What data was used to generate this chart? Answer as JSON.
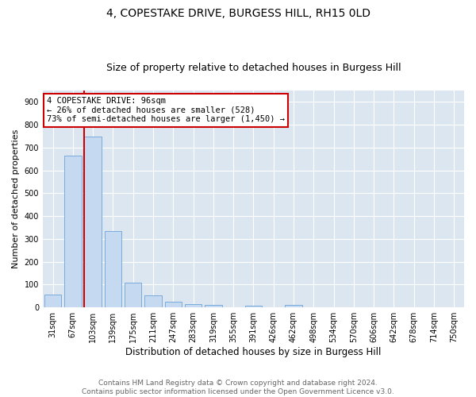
{
  "title": "4, COPESTAKE DRIVE, BURGESS HILL, RH15 0LD",
  "subtitle": "Size of property relative to detached houses in Burgess Hill",
  "xlabel": "Distribution of detached houses by size in Burgess Hill",
  "ylabel": "Number of detached properties",
  "bar_labels": [
    "31sqm",
    "67sqm",
    "103sqm",
    "139sqm",
    "175sqm",
    "211sqm",
    "247sqm",
    "283sqm",
    "319sqm",
    "355sqm",
    "391sqm",
    "426sqm",
    "462sqm",
    "498sqm",
    "534sqm",
    "570sqm",
    "606sqm",
    "642sqm",
    "678sqm",
    "714sqm",
    "750sqm"
  ],
  "bar_values": [
    55,
    665,
    750,
    335,
    110,
    52,
    25,
    15,
    10,
    0,
    8,
    0,
    10,
    0,
    0,
    0,
    0,
    0,
    0,
    0,
    0
  ],
  "bar_color": "#c5d9f0",
  "bar_edge_color": "#7aabdb",
  "fig_bg_color": "#ffffff",
  "ax_bg_color": "#dce6f0",
  "grid_color": "#ffffff",
  "property_label": "4 COPESTAKE DRIVE: 96sqm",
  "annotation_line1": "← 26% of detached houses are smaller (528)",
  "annotation_line2": "73% of semi-detached houses are larger (1,450) →",
  "vline_color": "#cc0000",
  "annotation_box_color": "#cc0000",
  "ylim": [
    0,
    950
  ],
  "yticks": [
    0,
    100,
    200,
    300,
    400,
    500,
    600,
    700,
    800,
    900
  ],
  "footnote1": "Contains HM Land Registry data © Crown copyright and database right 2024.",
  "footnote2": "Contains public sector information licensed under the Open Government Licence v3.0.",
  "title_fontsize": 10,
  "subtitle_fontsize": 9,
  "xlabel_fontsize": 8.5,
  "ylabel_fontsize": 8,
  "tick_fontsize": 7,
  "footnote_fontsize": 6.5,
  "annotation_fontsize": 7.5
}
